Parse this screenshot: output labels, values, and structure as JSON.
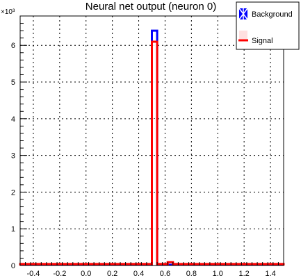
{
  "chart_data": {
    "type": "bar",
    "title": "Neural net output (neuron 0)",
    "xlabel": "",
    "ylabel": "",
    "y_exponent_label": "×10³",
    "y_multiplier": 1000,
    "xlim": [
      -0.5,
      1.5
    ],
    "ylim": [
      0,
      6.8
    ],
    "x_ticks": [
      -0.4,
      -0.2,
      0.0,
      0.2,
      0.4,
      0.6,
      0.8,
      1.0,
      1.2,
      1.4
    ],
    "x_tick_labels": [
      "-0.4",
      "-0.2",
      "0.0",
      "0.2",
      "0.4",
      "0.6",
      "0.8",
      "1.0",
      "1.2",
      "1.4"
    ],
    "y_ticks": [
      0,
      1,
      2,
      3,
      4,
      5,
      6
    ],
    "y_tick_labels": [
      "0",
      "1",
      "2",
      "3",
      "4",
      "5",
      "6"
    ],
    "grid": true,
    "legend_position": "top-right",
    "bin_width": 0.04,
    "series": [
      {
        "name": "Background",
        "color": "#0000ff",
        "bins": [
          {
            "x0": -0.5,
            "x1": 0.5,
            "value": 0.02
          },
          {
            "x0": 0.5,
            "x1": 0.54,
            "value": 6.4
          },
          {
            "x0": 0.54,
            "x1": 1.5,
            "value": 0.02
          }
        ]
      },
      {
        "name": "Signal",
        "color": "#ff0000",
        "bins": [
          {
            "x0": -0.5,
            "x1": 0.5,
            "value": 0.04
          },
          {
            "x0": 0.5,
            "x1": 0.54,
            "value": 6.1
          },
          {
            "x0": 0.54,
            "x1": 0.62,
            "value": 0.04
          },
          {
            "x0": 0.62,
            "x1": 0.66,
            "value": 0.09
          },
          {
            "x0": 0.66,
            "x1": 1.5,
            "value": 0.04
          }
        ]
      }
    ]
  }
}
